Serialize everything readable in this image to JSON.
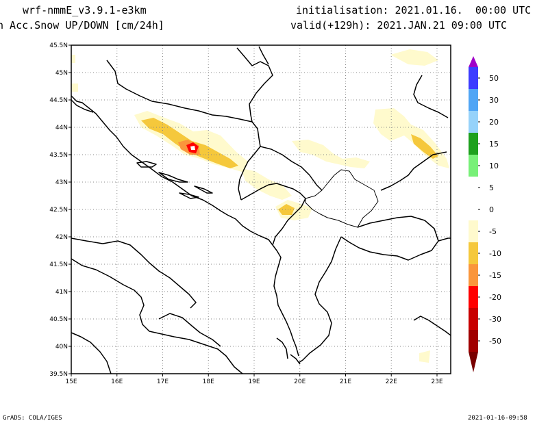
{
  "header": {
    "model": "wrf-nmmE_v3.9.1-e3km",
    "field": "n Acc.Snow UP/DOWN [cm/24h]",
    "initialisation": "initialisation: 2021.01.16.  00:00 UTC",
    "valid": "valid(+129h): 2021.JAN.21 09:00 UTC"
  },
  "footer": {
    "left": "GrADS: COLA/IGES",
    "right": "2021-01-16-09:58"
  },
  "map": {
    "lon_range": [
      15,
      23.3
    ],
    "lat_range": [
      39.5,
      45.5
    ],
    "lon_ticks": [
      "15E",
      "16E",
      "17E",
      "18E",
      "19E",
      "20E",
      "21E",
      "22E",
      "23E"
    ],
    "lat_ticks": [
      "39.5N",
      "40N",
      "40.5N",
      "41N",
      "41.5N",
      "42N",
      "42.5N",
      "43N",
      "43.5N",
      "44N",
      "44.5N",
      "45N",
      "45.5N"
    ],
    "grid": true
  },
  "colorbar": {
    "labels": [
      "50",
      "30",
      "20",
      "15",
      "10",
      "5",
      "0",
      "-5",
      "-10",
      "-15",
      "-20",
      "-30",
      "-50"
    ],
    "colors": [
      "#a000c8",
      "#3c3cff",
      "#50a5f5",
      "#96d2fa",
      "#1ea01e",
      "#78f078",
      "#ffffff",
      "#ffffff",
      "#fffacd",
      "#f5c83c",
      "#fa963c",
      "#ff0000",
      "#c80000",
      "#a00000",
      "#780000"
    ]
  },
  "palette": {
    "light": "#fffacd",
    "yellow": "#f5c83c",
    "orange": "#fa963c",
    "red": "#ff0000"
  }
}
